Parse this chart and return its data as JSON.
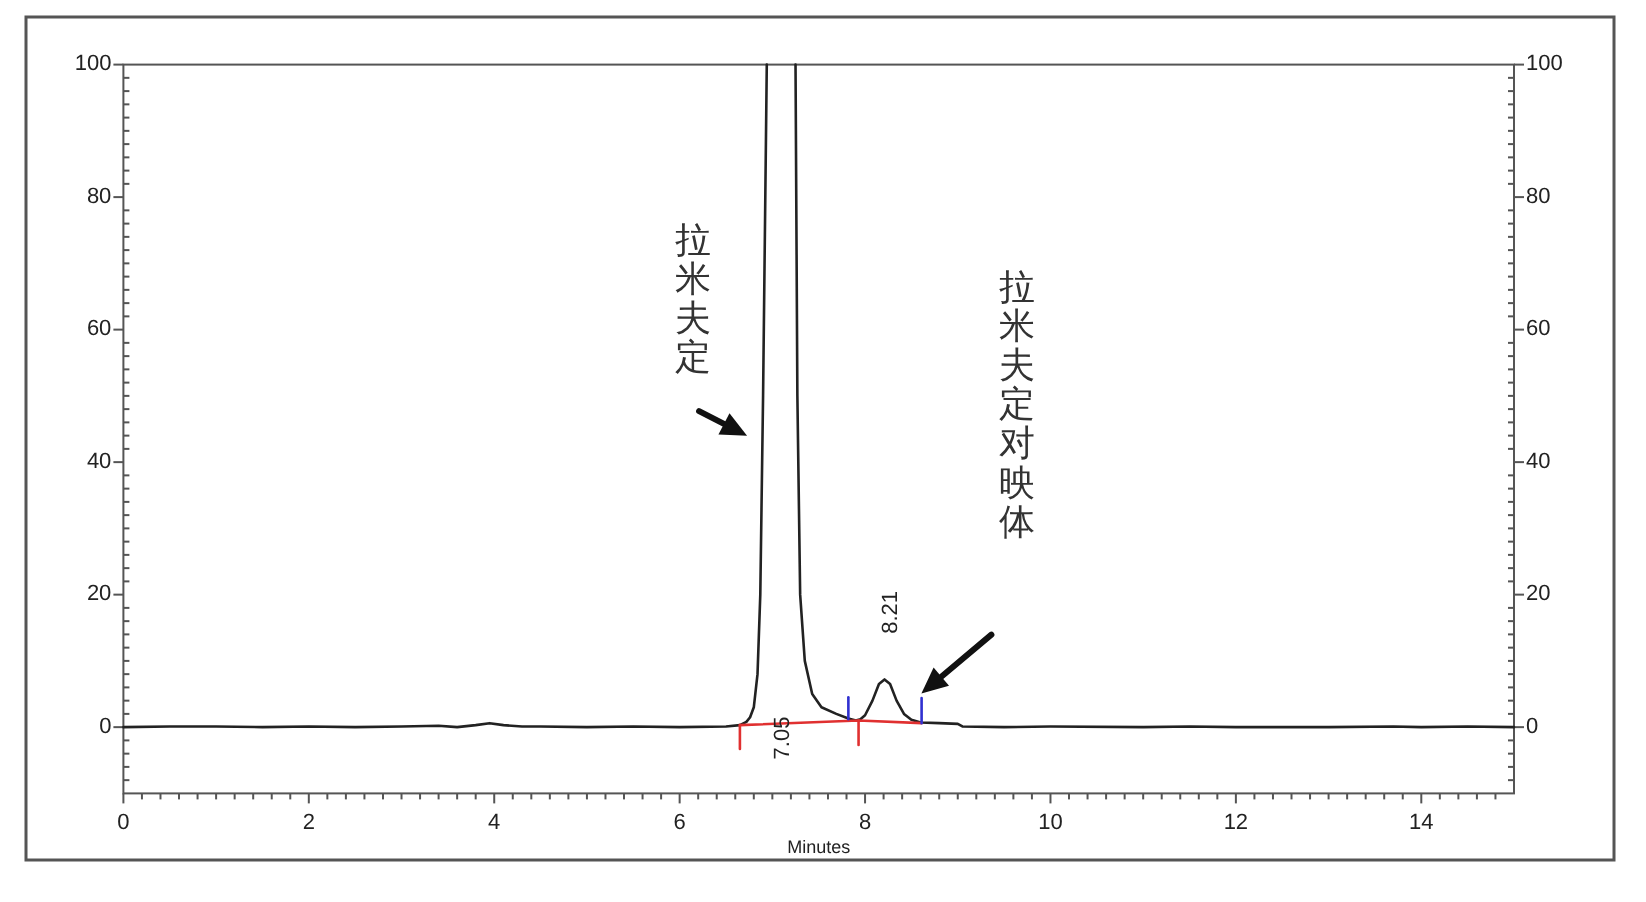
{
  "chart_data": {
    "type": "line",
    "xlabel": "Minutes",
    "xlim": [
      0,
      15
    ],
    "ylim": [
      -10,
      100
    ],
    "y2lim": [
      -10,
      100
    ],
    "xticks": [
      0,
      {
        "value": 0.2,
        "label": null
      },
      {
        "value": 0.4,
        "label": null
      },
      {
        "value": 0.6,
        "label": null
      },
      {
        "value": 0.8,
        "label": null
      },
      {
        "value": 1,
        "label": null
      },
      {
        "value": 1.2,
        "label": null
      },
      {
        "value": 1.4,
        "label": null
      },
      {
        "value": 1.6,
        "label": null
      },
      {
        "value": 1.8,
        "label": null
      },
      2,
      {
        "value": 2.2,
        "label": null
      },
      {
        "value": 2.4,
        "label": null
      },
      {
        "value": 2.6,
        "label": null
      },
      {
        "value": 2.8,
        "label": null
      },
      {
        "value": 3,
        "label": null
      },
      {
        "value": 3.2,
        "label": null
      },
      {
        "value": 3.4,
        "label": null
      },
      {
        "value": 3.6,
        "label": null
      },
      {
        "value": 3.8,
        "label": null
      },
      4,
      {
        "value": 4.2,
        "label": null
      },
      {
        "value": 4.4,
        "label": null
      },
      {
        "value": 4.6,
        "label": null
      },
      {
        "value": 4.8,
        "label": null
      },
      {
        "value": 5,
        "label": null
      },
      {
        "value": 5.2,
        "label": null
      },
      {
        "value": 5.4,
        "label": null
      },
      {
        "value": 5.6,
        "label": null
      },
      {
        "value": 5.8,
        "label": null
      },
      6,
      {
        "value": 6.2,
        "label": null
      },
      {
        "value": 6.4,
        "label": null
      },
      {
        "value": 6.6,
        "label": null
      },
      {
        "value": 6.8,
        "label": null
      },
      {
        "value": 7,
        "label": null
      },
      {
        "value": 7.2,
        "label": null
      },
      {
        "value": 7.4,
        "label": null
      },
      {
        "value": 7.6,
        "label": null
      },
      {
        "value": 7.8,
        "label": null
      },
      8,
      {
        "value": 8.2,
        "label": null
      },
      {
        "value": 8.4,
        "label": null
      },
      {
        "value": 8.6,
        "label": null
      },
      {
        "value": 8.8,
        "label": null
      },
      {
        "value": 9,
        "label": null
      },
      {
        "value": 9.2,
        "label": null
      },
      {
        "value": 9.4,
        "label": null
      },
      {
        "value": 9.6,
        "label": null
      },
      {
        "value": 9.8,
        "label": null
      },
      10,
      {
        "value": 10.2,
        "label": null
      },
      {
        "value": 10.4,
        "label": null
      },
      {
        "value": 10.6,
        "label": null
      },
      {
        "value": 10.8,
        "label": null
      },
      {
        "value": 11,
        "label": null
      },
      {
        "value": 11.2,
        "label": null
      },
      {
        "value": 11.4,
        "label": null
      },
      {
        "value": 11.6,
        "label": null
      },
      {
        "value": 11.8,
        "label": null
      },
      12,
      {
        "value": 12.2,
        "label": null
      },
      {
        "value": 12.4,
        "label": null
      },
      {
        "value": 12.6,
        "label": null
      },
      {
        "value": 12.8,
        "label": null
      },
      {
        "value": 13,
        "label": null
      },
      {
        "value": 13.2,
        "label": null
      },
      {
        "value": 13.4,
        "label": null
      },
      {
        "value": 13.6,
        "label": null
      },
      {
        "value": 13.8,
        "label": null
      },
      14,
      {
        "value": 14.2,
        "label": null
      },
      {
        "value": 14.4,
        "label": null
      },
      {
        "value": 14.6,
        "label": null
      },
      {
        "value": 14.8,
        "label": null
      }
    ],
    "yticks": [
      {
        "value": -8,
        "label": null
      },
      {
        "value": -6,
        "label": null
      },
      {
        "value": -4,
        "label": null
      },
      {
        "value": -2,
        "label": null
      },
      0,
      {
        "value": 2,
        "label": null
      },
      {
        "value": 4,
        "label": null
      },
      {
        "value": 6,
        "label": null
      },
      {
        "value": 8,
        "label": null
      },
      {
        "value": 10,
        "label": null
      },
      {
        "value": 12,
        "label": null
      },
      {
        "value": 14,
        "label": null
      },
      {
        "value": 16,
        "label": null
      },
      {
        "value": 18,
        "label": null
      },
      20,
      {
        "value": 22,
        "label": null
      },
      {
        "value": 24,
        "label": null
      },
      {
        "value": 26,
        "label": null
      },
      {
        "value": 28,
        "label": null
      },
      {
        "value": 30,
        "label": null
      },
      {
        "value": 32,
        "label": null
      },
      {
        "value": 34,
        "label": null
      },
      {
        "value": 36,
        "label": null
      },
      {
        "value": 38,
        "label": null
      },
      40,
      {
        "value": 42,
        "label": null
      },
      {
        "value": 44,
        "label": null
      },
      {
        "value": 46,
        "label": null
      },
      {
        "value": 48,
        "label": null
      },
      {
        "value": 50,
        "label": null
      },
      {
        "value": 52,
        "label": null
      },
      {
        "value": 54,
        "label": null
      },
      {
        "value": 56,
        "label": null
      },
      {
        "value": 58,
        "label": null
      },
      60,
      {
        "value": 62,
        "label": null
      },
      {
        "value": 64,
        "label": null
      },
      {
        "value": 66,
        "label": null
      },
      {
        "value": 68,
        "label": null
      },
      {
        "value": 70,
        "label": null
      },
      {
        "value": 72,
        "label": null
      },
      {
        "value": 74,
        "label": null
      },
      {
        "value": 76,
        "label": null
      },
      {
        "value": 78,
        "label": null
      },
      80,
      {
        "value": 82,
        "label": null
      },
      {
        "value": 84,
        "label": null
      },
      {
        "value": 86,
        "label": null
      },
      {
        "value": 88,
        "label": null
      },
      {
        "value": 90,
        "label": null
      },
      {
        "value": 92,
        "label": null
      },
      {
        "value": 94,
        "label": null
      },
      {
        "value": 96,
        "label": null
      },
      {
        "value": 98,
        "label": null
      },
      100
    ],
    "y2ticks": [
      {
        "value": -8,
        "label": null
      },
      {
        "value": -6,
        "label": null
      },
      {
        "value": -4,
        "label": null
      },
      {
        "value": -2,
        "label": null
      },
      0,
      {
        "value": 2,
        "label": null
      },
      {
        "value": 4,
        "label": null
      },
      {
        "value": 6,
        "label": null
      },
      {
        "value": 8,
        "label": null
      },
      {
        "value": 10,
        "label": null
      },
      {
        "value": 12,
        "label": null
      },
      {
        "value": 14,
        "label": null
      },
      {
        "value": 16,
        "label": null
      },
      {
        "value": 18,
        "label": null
      },
      20,
      {
        "value": 22,
        "label": null
      },
      {
        "value": 24,
        "label": null
      },
      {
        "value": 26,
        "label": null
      },
      {
        "value": 28,
        "label": null
      },
      {
        "value": 30,
        "label": null
      },
      {
        "value": 32,
        "label": null
      },
      {
        "value": 34,
        "label": null
      },
      {
        "value": 36,
        "label": null
      },
      {
        "value": 38,
        "label": null
      },
      40,
      {
        "value": 42,
        "label": null
      },
      {
        "value": 44,
        "label": null
      },
      {
        "value": 46,
        "label": null
      },
      {
        "value": 48,
        "label": null
      },
      {
        "value": 50,
        "label": null
      },
      {
        "value": 52,
        "label": null
      },
      {
        "value": 54,
        "label": null
      },
      {
        "value": 56,
        "label": null
      },
      {
        "value": 58,
        "label": null
      },
      60,
      {
        "value": 62,
        "label": null
      },
      {
        "value": 64,
        "label": null
      },
      {
        "value": 66,
        "label": null
      },
      {
        "value": 68,
        "label": null
      },
      {
        "value": 70,
        "label": null
      },
      {
        "value": 72,
        "label": null
      },
      {
        "value": 74,
        "label": null
      },
      {
        "value": 76,
        "label": null
      },
      {
        "value": 78,
        "label": null
      },
      80,
      {
        "value": 82,
        "label": null
      },
      {
        "value": 84,
        "label": null
      },
      {
        "value": 86,
        "label": null
      },
      {
        "value": 88,
        "label": null
      },
      {
        "value": 90,
        "label": null
      },
      {
        "value": 92,
        "label": null
      },
      {
        "value": 94,
        "label": null
      },
      {
        "value": 96,
        "label": null
      },
      {
        "value": 98,
        "label": null
      },
      100
    ],
    "series": [
      {
        "color": "#222222",
        "x": [
          0,
          0.5,
          1,
          1.5,
          2,
          2.5,
          3,
          3.4,
          3.6,
          3.8,
          3.95,
          4.1,
          4.3,
          4.5,
          5,
          5.5,
          6,
          6.5,
          6.65,
          6.72,
          6.76,
          6.8,
          6.84,
          6.87,
          6.9,
          6.94,
          7.05,
          7.25,
          7.27,
          7.3,
          7.35,
          7.43,
          7.53,
          7.69,
          7.82,
          7.9,
          7.95,
          8,
          8.08,
          8.15,
          8.21,
          8.27,
          8.34,
          8.42,
          8.5,
          8.6,
          8.8,
          9,
          9.05,
          9.5,
          10,
          11,
          11.5,
          12,
          13,
          13.7,
          14,
          14.5,
          15
        ],
        "values": [
          0,
          0.1,
          0.1,
          0,
          0.1,
          0,
          0.1,
          0.2,
          0,
          0.3,
          0.6,
          0.3,
          0.1,
          0.1,
          0,
          0.1,
          0,
          0.1,
          0.3,
          0.8,
          1.5,
          3,
          8,
          20,
          50,
          100,
          null,
          100,
          50,
          20,
          10,
          5,
          3,
          2,
          1.3,
          1,
          1.2,
          1.8,
          4,
          6.5,
          7.2,
          6.5,
          4,
          2,
          1.1,
          0.7,
          0.6,
          0.5,
          0.1,
          0,
          0.1,
          0,
          0.1,
          0,
          0,
          0.1,
          0,
          0.1,
          0
        ]
      },
      {
        "color": "#e03030",
        "x": [
          6.65,
          7.93,
          8.61
        ],
        "values": [
          0.3,
          1,
          0.6
        ]
      },
      {
        "color": "#e03030",
        "x": [
          6.65,
          6.65
        ],
        "values": [
          0.3,
          -3.3
        ]
      },
      {
        "color": "#e03030",
        "x": [
          7.93,
          7.93
        ],
        "values": [
          1,
          -2.7
        ]
      },
      {
        "color": "#3030d0",
        "x": [
          7.82,
          7.82
        ],
        "values": [
          1.2,
          4.5
        ]
      },
      {
        "color": "#3030d0",
        "x": [
          8.61,
          8.61
        ],
        "values": [
          0.6,
          4.4
        ]
      }
    ],
    "annotations": [
      {
        "text": "拉米夫定",
        "x": 6.9,
        "y": 50
      },
      "拉米夫定对映体",
      "7.05",
      {
        "text": "8.21",
        "x": 8.21,
        "y": 7.2
      }
    ]
  }
}
